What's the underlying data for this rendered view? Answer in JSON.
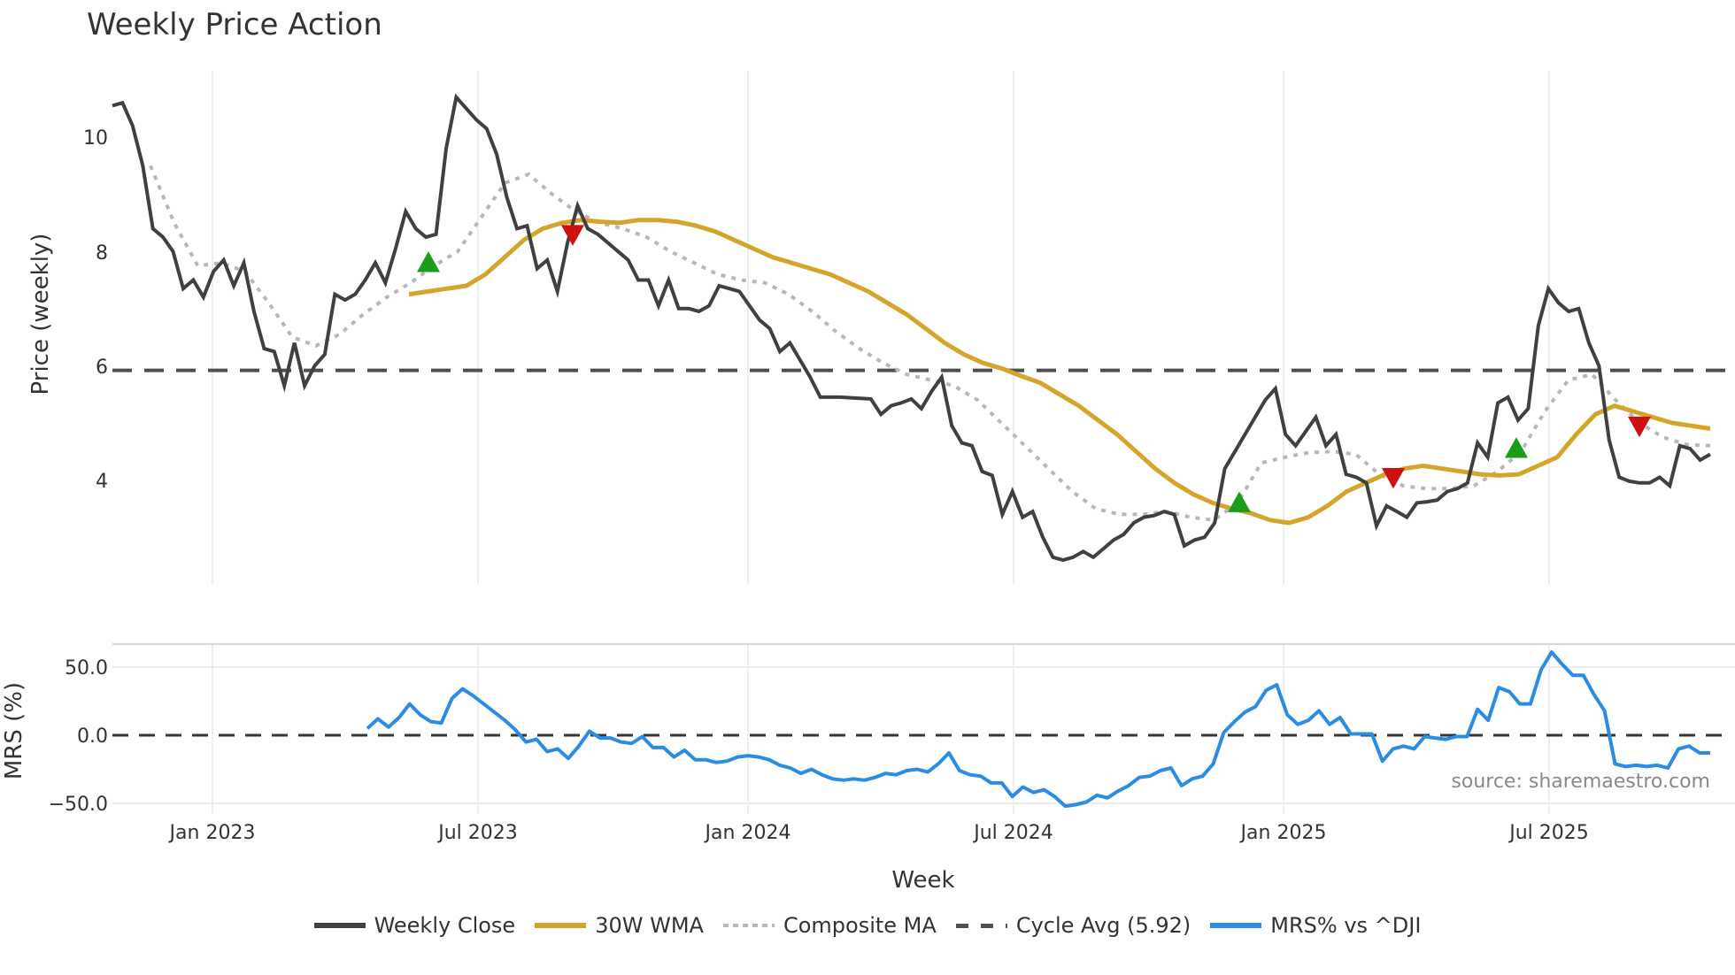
{
  "title": "Weekly Price Action",
  "axes": {
    "price_ylabel": "Price (weekly)",
    "mrs_ylabel": "MRS (%)",
    "xlabel": "Week",
    "price_yticks": [
      "10",
      "8",
      "6",
      "4"
    ],
    "mrs_yticks": [
      "50.0",
      "0.0",
      "−50.0"
    ],
    "xticks": [
      "Jan 2023",
      "Jul 2023",
      "Jan 2024",
      "Jul 2024",
      "Jan 2025",
      "Jul 2025"
    ]
  },
  "source": "source: sharemaestro.com",
  "legend": [
    {
      "label": "Weekly Close",
      "color": "#404040",
      "style": "solid"
    },
    {
      "label": "30W WMA",
      "color": "#d4a52a",
      "style": "solid"
    },
    {
      "label": "Composite MA",
      "color": "#b8b8b8",
      "style": "dotted"
    },
    {
      "label": "Cycle Avg (5.92)",
      "color": "#505050",
      "style": "dashed"
    },
    {
      "label": "MRS% vs ^DJI",
      "color": "#2b8ce6",
      "style": "solid"
    }
  ],
  "chart_data": [
    {
      "type": "line",
      "title": "Weekly Price Action",
      "xlabel": "Week",
      "ylabel": "Price (weekly)",
      "ylim": [
        2.2,
        11.1
      ],
      "grid": "vertical",
      "x_range": [
        "2022-11",
        "2025-10"
      ],
      "categories_note": "weekly points, approx Nov 2022 - Oct 2025",
      "series": [
        {
          "name": "Weekly Close",
          "color": "#404040",
          "values": [
            10.55,
            10.6,
            10.2,
            9.5,
            8.4,
            8.25,
            8.0,
            7.35,
            7.5,
            7.2,
            7.65,
            7.85,
            7.4,
            7.8,
            6.95,
            6.3,
            6.25,
            5.65,
            6.4,
            5.65,
            6.0,
            6.2,
            7.25,
            7.15,
            7.25,
            7.5,
            7.8,
            7.45,
            8.05,
            8.7,
            8.4,
            8.25,
            8.3,
            9.8,
            10.7,
            10.5,
            10.3,
            10.15,
            9.7,
            8.95,
            8.4,
            8.45,
            7.7,
            7.85,
            7.3,
            8.15,
            8.8,
            8.4,
            8.3,
            8.15,
            8.0,
            7.85,
            7.5,
            7.5,
            7.05,
            7.5,
            7.0,
            7.0,
            6.95,
            7.05,
            7.4,
            7.35,
            7.3,
            7.05,
            6.8,
            6.65,
            6.25,
            6.4,
            6.1,
            5.8,
            5.45,
            5.45,
            5.45,
            5.44,
            5.43,
            5.42,
            5.15,
            5.3,
            5.35,
            5.42,
            5.25,
            5.55,
            5.8,
            4.95,
            4.65,
            4.6,
            4.15,
            4.08,
            3.4,
            3.8,
            3.35,
            3.45,
            3.0,
            2.65,
            2.6,
            2.65,
            2.75,
            2.65,
            2.8,
            2.95,
            3.05,
            3.25,
            3.35,
            3.38,
            3.45,
            3.4,
            2.85,
            2.95,
            3.0,
            3.25,
            4.2,
            4.5,
            4.8,
            5.1,
            5.4,
            5.6,
            4.8,
            4.6,
            4.85,
            5.1,
            4.6,
            4.8,
            4.1,
            4.05,
            3.95,
            3.2,
            3.55,
            3.45,
            3.35,
            3.6,
            3.62,
            3.65,
            3.8,
            3.85,
            3.95,
            4.65,
            4.4,
            5.35,
            5.45,
            5.05,
            5.25,
            6.7,
            7.35,
            7.1,
            6.95,
            7.0,
            6.4,
            6.0,
            4.7,
            4.05,
            3.98,
            3.95,
            3.95,
            4.05,
            3.9,
            4.6,
            4.55,
            4.35,
            4.45
          ]
        },
        {
          "name": "30W WMA",
          "color": "#d4a52a",
          "values": [
            7.25,
            7.3,
            7.35,
            7.4,
            7.6,
            7.9,
            8.2,
            8.4,
            8.5,
            8.55,
            8.52,
            8.5,
            8.55,
            8.55,
            8.52,
            8.45,
            8.35,
            8.2,
            8.05,
            7.9,
            7.8,
            7.7,
            7.6,
            7.45,
            7.3,
            7.1,
            6.9,
            6.65,
            6.4,
            6.2,
            6.05,
            5.95,
            5.82,
            5.7,
            5.5,
            5.3,
            5.05,
            4.8,
            4.5,
            4.2,
            3.95,
            3.75,
            3.6,
            3.5,
            3.42,
            3.3,
            3.25,
            3.35,
            3.55,
            3.8,
            3.95,
            4.1,
            4.2,
            4.25,
            4.2,
            4.15,
            4.1,
            4.08,
            4.1,
            4.25,
            4.4,
            4.8,
            5.15,
            5.3,
            5.2,
            5.1,
            5.0,
            4.95,
            4.9
          ]
        },
        {
          "name": "Composite MA",
          "color": "#b8b8b8",
          "values": [
            9.5,
            8.5,
            7.75,
            7.8,
            7.65,
            7.1,
            6.5,
            6.35,
            6.55,
            6.9,
            7.2,
            7.45,
            7.75,
            8.0,
            8.6,
            9.2,
            9.35,
            9.0,
            8.7,
            8.5,
            8.4,
            8.25,
            8.0,
            7.8,
            7.6,
            7.5,
            7.45,
            7.25,
            6.95,
            6.6,
            6.3,
            6.05,
            5.85,
            5.75,
            5.65,
            5.4,
            5.0,
            4.6,
            4.2,
            3.8,
            3.5,
            3.4,
            3.4,
            3.45,
            3.35,
            3.3,
            3.6,
            4.3,
            4.4,
            4.48,
            4.5,
            4.45,
            4.1,
            3.9,
            3.85,
            3.85,
            3.9,
            4.15,
            4.5,
            5.2,
            5.75,
            5.85,
            5.4,
            5.0,
            4.75,
            4.62,
            4.6
          ]
        },
        {
          "name": "Cycle Avg (5.92)",
          "color": "#505050",
          "style": "dashed",
          "values": [
            5.92
          ]
        }
      ],
      "markers": [
        {
          "type": "buy",
          "symbol": "triangle-up",
          "color": "#1a9e1a",
          "date_approx": "2023-06",
          "price": 7.8
        },
        {
          "type": "sell",
          "symbol": "triangle-down",
          "color": "#cc1111",
          "date_approx": "2023-10",
          "price": 8.3
        },
        {
          "type": "buy",
          "symbol": "triangle-up",
          "color": "#1a9e1a",
          "date_approx": "2024-12",
          "price": 3.6
        },
        {
          "type": "sell",
          "symbol": "triangle-down",
          "color": "#cc1111",
          "date_approx": "2025-04",
          "price": 4.05
        },
        {
          "type": "buy",
          "symbol": "triangle-up",
          "color": "#1a9e1a",
          "date_approx": "2025-06",
          "price": 4.55
        },
        {
          "type": "sell",
          "symbol": "triangle-down",
          "color": "#cc1111",
          "date_approx": "2025-09",
          "price": 4.95
        }
      ]
    },
    {
      "type": "line",
      "title": "",
      "xlabel": "Week",
      "ylabel": "MRS (%)",
      "ylim": [
        -55,
        65
      ],
      "series": [
        {
          "name": "MRS% vs ^DJI",
          "color": "#2b8ce6",
          "values": [
            5,
            12,
            6,
            13,
            23,
            15,
            10,
            9,
            27,
            34,
            29,
            23,
            17,
            11,
            4,
            -5,
            -3,
            -12,
            -10,
            -17,
            -8,
            3,
            -2,
            -2,
            -5,
            -6,
            -1,
            -9,
            -9,
            -16,
            -11,
            -18,
            -18,
            -20,
            -19,
            -16,
            -15,
            -16,
            -18,
            -22,
            -24,
            -28,
            -25,
            -29,
            -32,
            -33,
            -32,
            -33,
            -31,
            -28,
            -29,
            -26,
            -25,
            -27,
            -21,
            -13,
            -26,
            -29,
            -30,
            -35,
            -35,
            -45,
            -38,
            -42,
            -40,
            -45,
            -52,
            -51,
            -49,
            -44,
            -46,
            -41,
            -37,
            -31,
            -30,
            -26,
            -24,
            -37,
            -32,
            -30,
            -21,
            2,
            10,
            17,
            21,
            33,
            37,
            15,
            8,
            11,
            18,
            8,
            13,
            1,
            1,
            1,
            -19,
            -10,
            -8,
            -10,
            -1,
            -2,
            -3,
            -1,
            -1,
            19,
            11,
            35,
            32,
            23,
            23,
            48,
            61,
            52,
            44,
            44,
            30,
            18,
            -21,
            -23,
            -22,
            -23,
            -22,
            -24,
            -10,
            -8,
            -13,
            -13
          ]
        },
        {
          "name": "Zero line",
          "style": "dashed",
          "values": [
            0
          ]
        }
      ]
    }
  ]
}
